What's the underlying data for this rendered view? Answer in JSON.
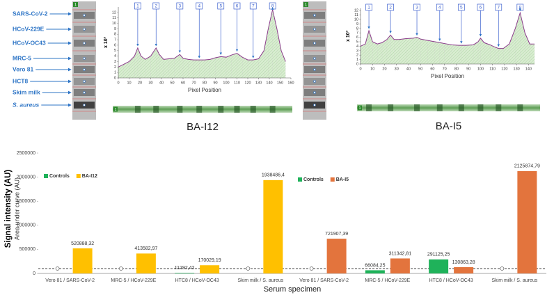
{
  "blot_labels": [
    "SARS-CoV-2",
    "HCoV-229E",
    "HCoV-OC43",
    "MRC-5",
    "Vero 81",
    "HCT8",
    "Skim milk",
    "S. aureus"
  ],
  "strip_label": "1",
  "chart_data": [
    {
      "type": "line",
      "caption": "BA-I12",
      "ylabel": "x 10³",
      "xlabel": "Pixel Position",
      "xlim": [
        0,
        160
      ],
      "xticks": [
        0,
        10,
        20,
        30,
        40,
        50,
        60,
        70,
        80,
        90,
        100,
        110,
        120,
        130,
        140,
        150,
        160
      ],
      "ylim": [
        0,
        13
      ],
      "yticks": [
        0,
        1,
        2,
        3,
        4,
        5,
        6,
        7,
        8,
        9,
        10,
        11,
        12
      ],
      "series": [
        {
          "color": "#8b3a8b",
          "x": [
            0,
            5,
            10,
            15,
            18,
            21,
            25,
            30,
            35,
            38,
            42,
            47,
            52,
            57,
            60,
            65,
            70,
            75,
            80,
            85,
            90,
            95,
            100,
            105,
            110,
            115,
            120,
            125,
            130,
            135,
            139,
            143,
            147,
            151,
            155
          ],
          "values": [
            2,
            2.5,
            3,
            4,
            5.5,
            4,
            3.4,
            4,
            5.5,
            4.3,
            3.4,
            3.5,
            3.6,
            4.3,
            3.6,
            3.4,
            3.3,
            3.3,
            3.3,
            3.4,
            3.7,
            3.9,
            3.8,
            4.2,
            4.5,
            3.8,
            3.3,
            3.3,
            3.5,
            5,
            9,
            12.5,
            9,
            5,
            3
          ]
        }
      ],
      "markers": [
        {
          "label": "1",
          "x": 18
        },
        {
          "label": "2",
          "x": 35
        },
        {
          "label": "3",
          "x": 57
        },
        {
          "label": "4",
          "x": 75
        },
        {
          "label": "5",
          "x": 95
        },
        {
          "label": "6",
          "x": 110
        },
        {
          "label": "7",
          "x": 125
        },
        {
          "label": "8",
          "x": 143
        }
      ]
    },
    {
      "type": "line",
      "caption": "BA-I5",
      "ylabel": "x 10³",
      "xlabel": "Pixel Position",
      "xlim": [
        0,
        145
      ],
      "xticks": [
        0,
        10,
        20,
        30,
        40,
        50,
        60,
        70,
        80,
        90,
        100,
        110,
        120,
        130,
        140
      ],
      "ylim": [
        0,
        12.5
      ],
      "yticks": [
        0,
        1,
        2,
        3,
        4,
        5,
        6,
        7,
        8,
        9,
        10,
        11,
        12
      ],
      "series": [
        {
          "color": "#8b3a8b",
          "x": [
            0,
            4,
            7,
            10,
            14,
            18,
            22,
            25,
            28,
            32,
            38,
            44,
            47,
            50,
            56,
            62,
            66,
            70,
            76,
            82,
            84,
            88,
            94,
            98,
            100,
            103,
            108,
            112,
            115,
            119,
            124,
            129,
            133,
            137,
            141,
            145
          ],
          "values": [
            4,
            4.5,
            7.5,
            5,
            4.5,
            4.8,
            5.5,
            6.5,
            5.5,
            5.5,
            5.7,
            5.8,
            6,
            5.6,
            5.3,
            5,
            4.8,
            4.6,
            4.3,
            4.2,
            4.2,
            4.2,
            4.3,
            5,
            5.8,
            4.8,
            4.3,
            3.8,
            3.5,
            3.5,
            4.5,
            8,
            11.5,
            7,
            4.5,
            4.5
          ]
        }
      ],
      "markers": [
        {
          "label": "1",
          "x": 7
        },
        {
          "label": "2",
          "x": 25
        },
        {
          "label": "3",
          "x": 47
        },
        {
          "label": "4",
          "x": 66
        },
        {
          "label": "5",
          "x": 84
        },
        {
          "label": "6",
          "x": 100
        },
        {
          "label": "7",
          "x": 115
        },
        {
          "label": "8",
          "x": 133
        }
      ]
    },
    {
      "type": "bar",
      "ylabel": "Signal intensity (AU)",
      "ylabel2": "Area under curve (AU)",
      "xlabel": "Serum specimen",
      "categories": [
        "Vero 81 / SARS-CoV-2",
        "MRC-5 / HCoV-229E",
        "HTC8 / HCoV-OC43",
        "Skim milk / S. aureus",
        "Vero 81 / SARS-CoV-2",
        "MRC-5 / HCoV-229E",
        "HTC8 / HCoV-OC43",
        "Skim milk / S. aureus"
      ],
      "ylim": [
        0,
        2500000
      ],
      "yticks": [
        0,
        500000,
        1000000,
        1500000,
        2000000,
        2500000
      ],
      "reference_line": 100000,
      "series": [
        {
          "name": "Controls",
          "color": "#1fb25a",
          "values": [
            0,
            0,
            11292.42,
            0,
            0,
            66084.25,
            291125.25,
            0
          ],
          "value_labels": [
            null,
            null,
            "11292,42",
            null,
            null,
            "66084,25",
            "291125,25",
            null
          ]
        },
        {
          "name": "BA-I12",
          "color": "#ffc000",
          "values": [
            520888.32,
            413582.97,
            170029.19,
            1938486.4,
            null,
            null,
            null,
            null
          ],
          "value_labels": [
            "520888,32",
            "413582,97",
            "170029,19",
            "1938486,4",
            null,
            null,
            null,
            null
          ]
        },
        {
          "name": "BA-I5",
          "color": "#e3743d",
          "values": [
            null,
            null,
            null,
            null,
            721907.39,
            311342.81,
            130863.28,
            2125874.79
          ],
          "value_labels": [
            null,
            null,
            null,
            null,
            "721907,39",
            "311342,81",
            "130863,28",
            "2125874,79"
          ]
        }
      ]
    }
  ]
}
